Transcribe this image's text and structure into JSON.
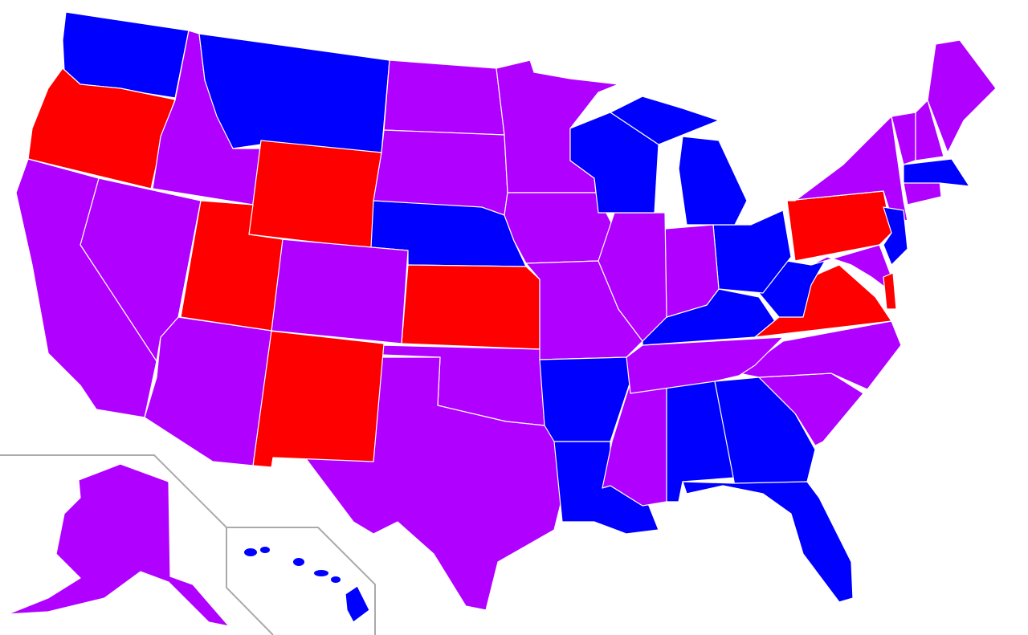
{
  "colors": {
    "blue": "#0000FF",
    "red": "#FF0000",
    "purple": "#B000FF",
    "inset_border": "#AAAAAA"
  },
  "state_fill": {
    "WA": "blue",
    "OR": "red",
    "CA": "purple",
    "ID": "purple",
    "NV": "purple",
    "MT": "blue",
    "WY": "red",
    "UT": "red",
    "AZ": "purple",
    "CO": "purple",
    "NM": "red",
    "ND": "purple",
    "SD": "purple",
    "NE": "blue",
    "KS": "red",
    "OK": "purple",
    "TX": "purple",
    "MN": "purple",
    "IA": "purple",
    "MO": "purple",
    "AR": "blue",
    "LA": "blue",
    "WI": "blue",
    "IL": "purple",
    "MI": "blue",
    "MI2": "blue",
    "IN": "purple",
    "OH": "blue",
    "KY": "blue",
    "TN": "purple",
    "MS": "purple",
    "AL": "blue",
    "GA": "blue",
    "FL": "blue",
    "SC": "purple",
    "NC": "purple",
    "VA": "red",
    "WV": "blue",
    "PA": "red",
    "NY": "purple",
    "NJ": "blue",
    "MD": "purple",
    "DE": "red",
    "CT": "purple",
    "MA": "blue",
    "VT": "purple",
    "NH": "purple",
    "ME": "purple",
    "AK": "purple",
    "HI": "blue"
  }
}
